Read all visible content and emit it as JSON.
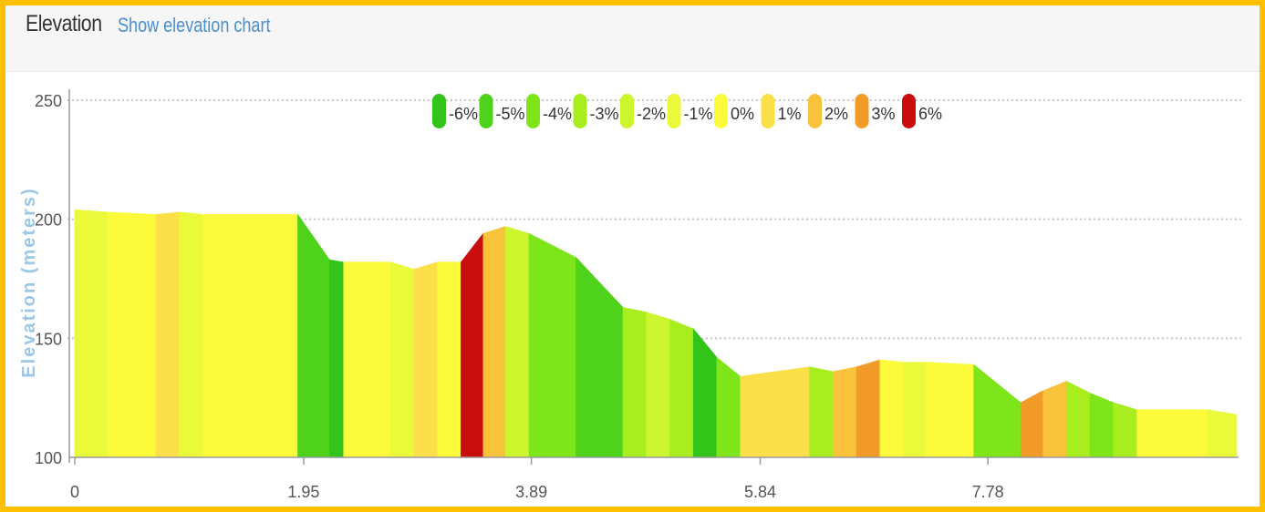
{
  "header": {
    "title": "Elevation",
    "link_label": "Show elevation chart"
  },
  "chart_data": {
    "type": "area",
    "ylabel": "Elevation (meters)",
    "ylim": [
      100,
      250
    ],
    "yticks": [
      "250",
      "200",
      "150",
      "100"
    ],
    "xticks": [
      {
        "label": "0",
        "value": 0
      },
      {
        "label": "1.95",
        "value": 1.95
      },
      {
        "label": "3.89",
        "value": 3.89
      },
      {
        "label": "5.84",
        "value": 5.84
      },
      {
        "label": "7.78",
        "value": 7.78
      }
    ],
    "xlim": [
      0,
      9.9
    ],
    "grid": true,
    "legend_position": "top-center",
    "legend": [
      {
        "label": "-6%",
        "color": "#33c41a"
      },
      {
        "label": "-5%",
        "color": "#4fd21a"
      },
      {
        "label": "-4%",
        "color": "#7de51a"
      },
      {
        "label": "-3%",
        "color": "#a8ee1e"
      },
      {
        "label": "-2%",
        "color": "#cdf52e"
      },
      {
        "label": "-1%",
        "color": "#eaf93a"
      },
      {
        "label": "0%",
        "color": "#fbfb3c"
      },
      {
        "label": "1%",
        "color": "#fbe04a"
      },
      {
        "label": "2%",
        "color": "#f8c23a"
      },
      {
        "label": "3%",
        "color": "#f29b28"
      },
      {
        "label": "6%",
        "color": "#c90c0c"
      }
    ],
    "segments": [
      {
        "x0": 0.0,
        "x1": 0.28,
        "y0": 204,
        "y1": 203,
        "grade": "-1%"
      },
      {
        "x0": 0.28,
        "x1": 0.69,
        "y0": 203,
        "y1": 202,
        "grade": "0%"
      },
      {
        "x0": 0.69,
        "x1": 0.89,
        "y0": 202,
        "y1": 203,
        "grade": "1%"
      },
      {
        "x0": 0.89,
        "x1": 1.09,
        "y0": 203,
        "y1": 202,
        "grade": "-1%"
      },
      {
        "x0": 1.09,
        "x1": 1.9,
        "y0": 202,
        "y1": 202,
        "grade": "0%"
      },
      {
        "x0": 1.9,
        "x1": 2.17,
        "y0": 202,
        "y1": 183,
        "grade": "-5%"
      },
      {
        "x0": 2.17,
        "x1": 2.29,
        "y0": 183,
        "y1": 182,
        "grade": "-6%"
      },
      {
        "x0": 2.29,
        "x1": 2.69,
        "y0": 182,
        "y1": 182,
        "grade": "0%"
      },
      {
        "x0": 2.69,
        "x1": 2.89,
        "y0": 182,
        "y1": 179,
        "grade": "-1%"
      },
      {
        "x0": 2.89,
        "x1": 3.09,
        "y0": 179,
        "y1": 182,
        "grade": "1%"
      },
      {
        "x0": 3.09,
        "x1": 3.29,
        "y0": 182,
        "y1": 182,
        "grade": "0%"
      },
      {
        "x0": 3.29,
        "x1": 3.48,
        "y0": 182,
        "y1": 194,
        "grade": "6%"
      },
      {
        "x0": 3.48,
        "x1": 3.67,
        "y0": 194,
        "y1": 197,
        "grade": "2%"
      },
      {
        "x0": 3.67,
        "x1": 3.87,
        "y0": 197,
        "y1": 194,
        "grade": "-2%"
      },
      {
        "x0": 3.87,
        "x1": 4.27,
        "y0": 194,
        "y1": 184,
        "grade": "-4%"
      },
      {
        "x0": 4.27,
        "x1": 4.67,
        "y0": 184,
        "y1": 163,
        "grade": "-5%"
      },
      {
        "x0": 4.67,
        "x1": 4.87,
        "y0": 163,
        "y1": 161,
        "grade": "-3%"
      },
      {
        "x0": 4.87,
        "x1": 5.07,
        "y0": 161,
        "y1": 158,
        "grade": "-2%"
      },
      {
        "x0": 5.07,
        "x1": 5.27,
        "y0": 158,
        "y1": 154,
        "grade": "-3%"
      },
      {
        "x0": 5.27,
        "x1": 5.47,
        "y0": 154,
        "y1": 142,
        "grade": "-6%"
      },
      {
        "x0": 5.47,
        "x1": 5.67,
        "y0": 142,
        "y1": 134,
        "grade": "-4%"
      },
      {
        "x0": 5.67,
        "x1": 6.26,
        "y0": 134,
        "y1": 138,
        "grade": "1%"
      },
      {
        "x0": 6.26,
        "x1": 6.46,
        "y0": 138,
        "y1": 136,
        "grade": "-3%"
      },
      {
        "x0": 6.46,
        "x1": 6.66,
        "y0": 136,
        "y1": 138,
        "grade": "2%"
      },
      {
        "x0": 6.66,
        "x1": 6.86,
        "y0": 138,
        "y1": 141,
        "grade": "3%"
      },
      {
        "x0": 6.86,
        "x1": 7.06,
        "y0": 141,
        "y1": 140,
        "grade": "0%"
      },
      {
        "x0": 7.06,
        "x1": 7.25,
        "y0": 140,
        "y1": 140,
        "grade": "-1%"
      },
      {
        "x0": 7.25,
        "x1": 7.66,
        "y0": 140,
        "y1": 139,
        "grade": "0%"
      },
      {
        "x0": 7.66,
        "x1": 8.06,
        "y0": 139,
        "y1": 123,
        "grade": "-4%"
      },
      {
        "x0": 8.06,
        "x1": 8.25,
        "y0": 123,
        "y1": 128,
        "grade": "3%"
      },
      {
        "x0": 8.25,
        "x1": 8.45,
        "y0": 128,
        "y1": 132,
        "grade": "2%"
      },
      {
        "x0": 8.45,
        "x1": 8.65,
        "y0": 132,
        "y1": 127,
        "grade": "-3%"
      },
      {
        "x0": 8.65,
        "x1": 8.85,
        "y0": 127,
        "y1": 123,
        "grade": "-4%"
      },
      {
        "x0": 8.85,
        "x1": 9.05,
        "y0": 123,
        "y1": 120,
        "grade": "-3%"
      },
      {
        "x0": 9.05,
        "x1": 9.65,
        "y0": 120,
        "y1": 120,
        "grade": "0%"
      },
      {
        "x0": 9.65,
        "x1": 9.9,
        "y0": 120,
        "y1": 118,
        "grade": "-1%"
      }
    ]
  }
}
